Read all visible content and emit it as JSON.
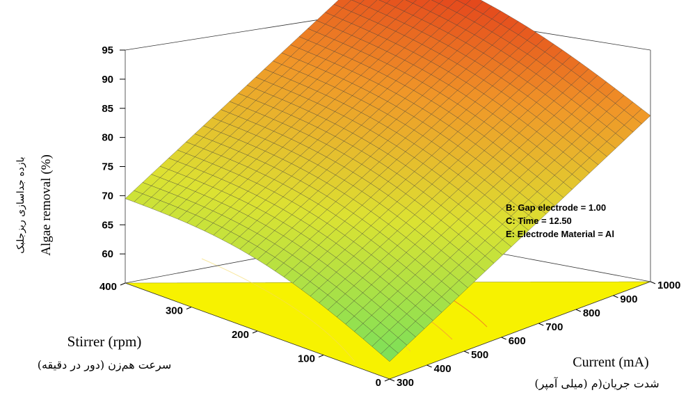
{
  "chart_data": {
    "type": "surface3d",
    "z_axis": {
      "label": "Algae removal (%)",
      "label_fa": "بازده جداسازی ریزجلبک",
      "ticks": [
        60,
        65,
        70,
        75,
        80,
        85,
        90,
        95
      ],
      "range": [
        55,
        95
      ]
    },
    "x_axis": {
      "label": "Current (mA)",
      "label_fa": "شدت جریان(م (میلی آمپر)",
      "ticks": [
        300,
        400,
        500,
        600,
        700,
        800,
        900,
        1000
      ],
      "range": [
        300,
        1000
      ]
    },
    "y_axis": {
      "label": "Stirrer (rpm)",
      "label_fa": "سرعت هم‌زن (دور در دقیقه)",
      "ticks": [
        0,
        100,
        200,
        300,
        400
      ],
      "range": [
        0,
        400
      ]
    },
    "surface_corners": [
      {
        "current": 300,
        "stirrer": 400,
        "removal": 69.5
      },
      {
        "current": 1000,
        "stirrer": 400,
        "removal": 94.5
      },
      {
        "current": 1000,
        "stirrer": 0,
        "removal": 83.5
      },
      {
        "current": 300,
        "stirrer": 0,
        "removal": 58.0
      }
    ],
    "fixed_factors": [
      "B: Gap electrode = 1.00",
      "C: Time = 12.50",
      "E: Electrode Material = Al"
    ],
    "colormap": [
      "#7fe05a",
      "#e8e030",
      "#f07a22",
      "#e03a1a"
    ],
    "floor_color": "#f7f200"
  }
}
